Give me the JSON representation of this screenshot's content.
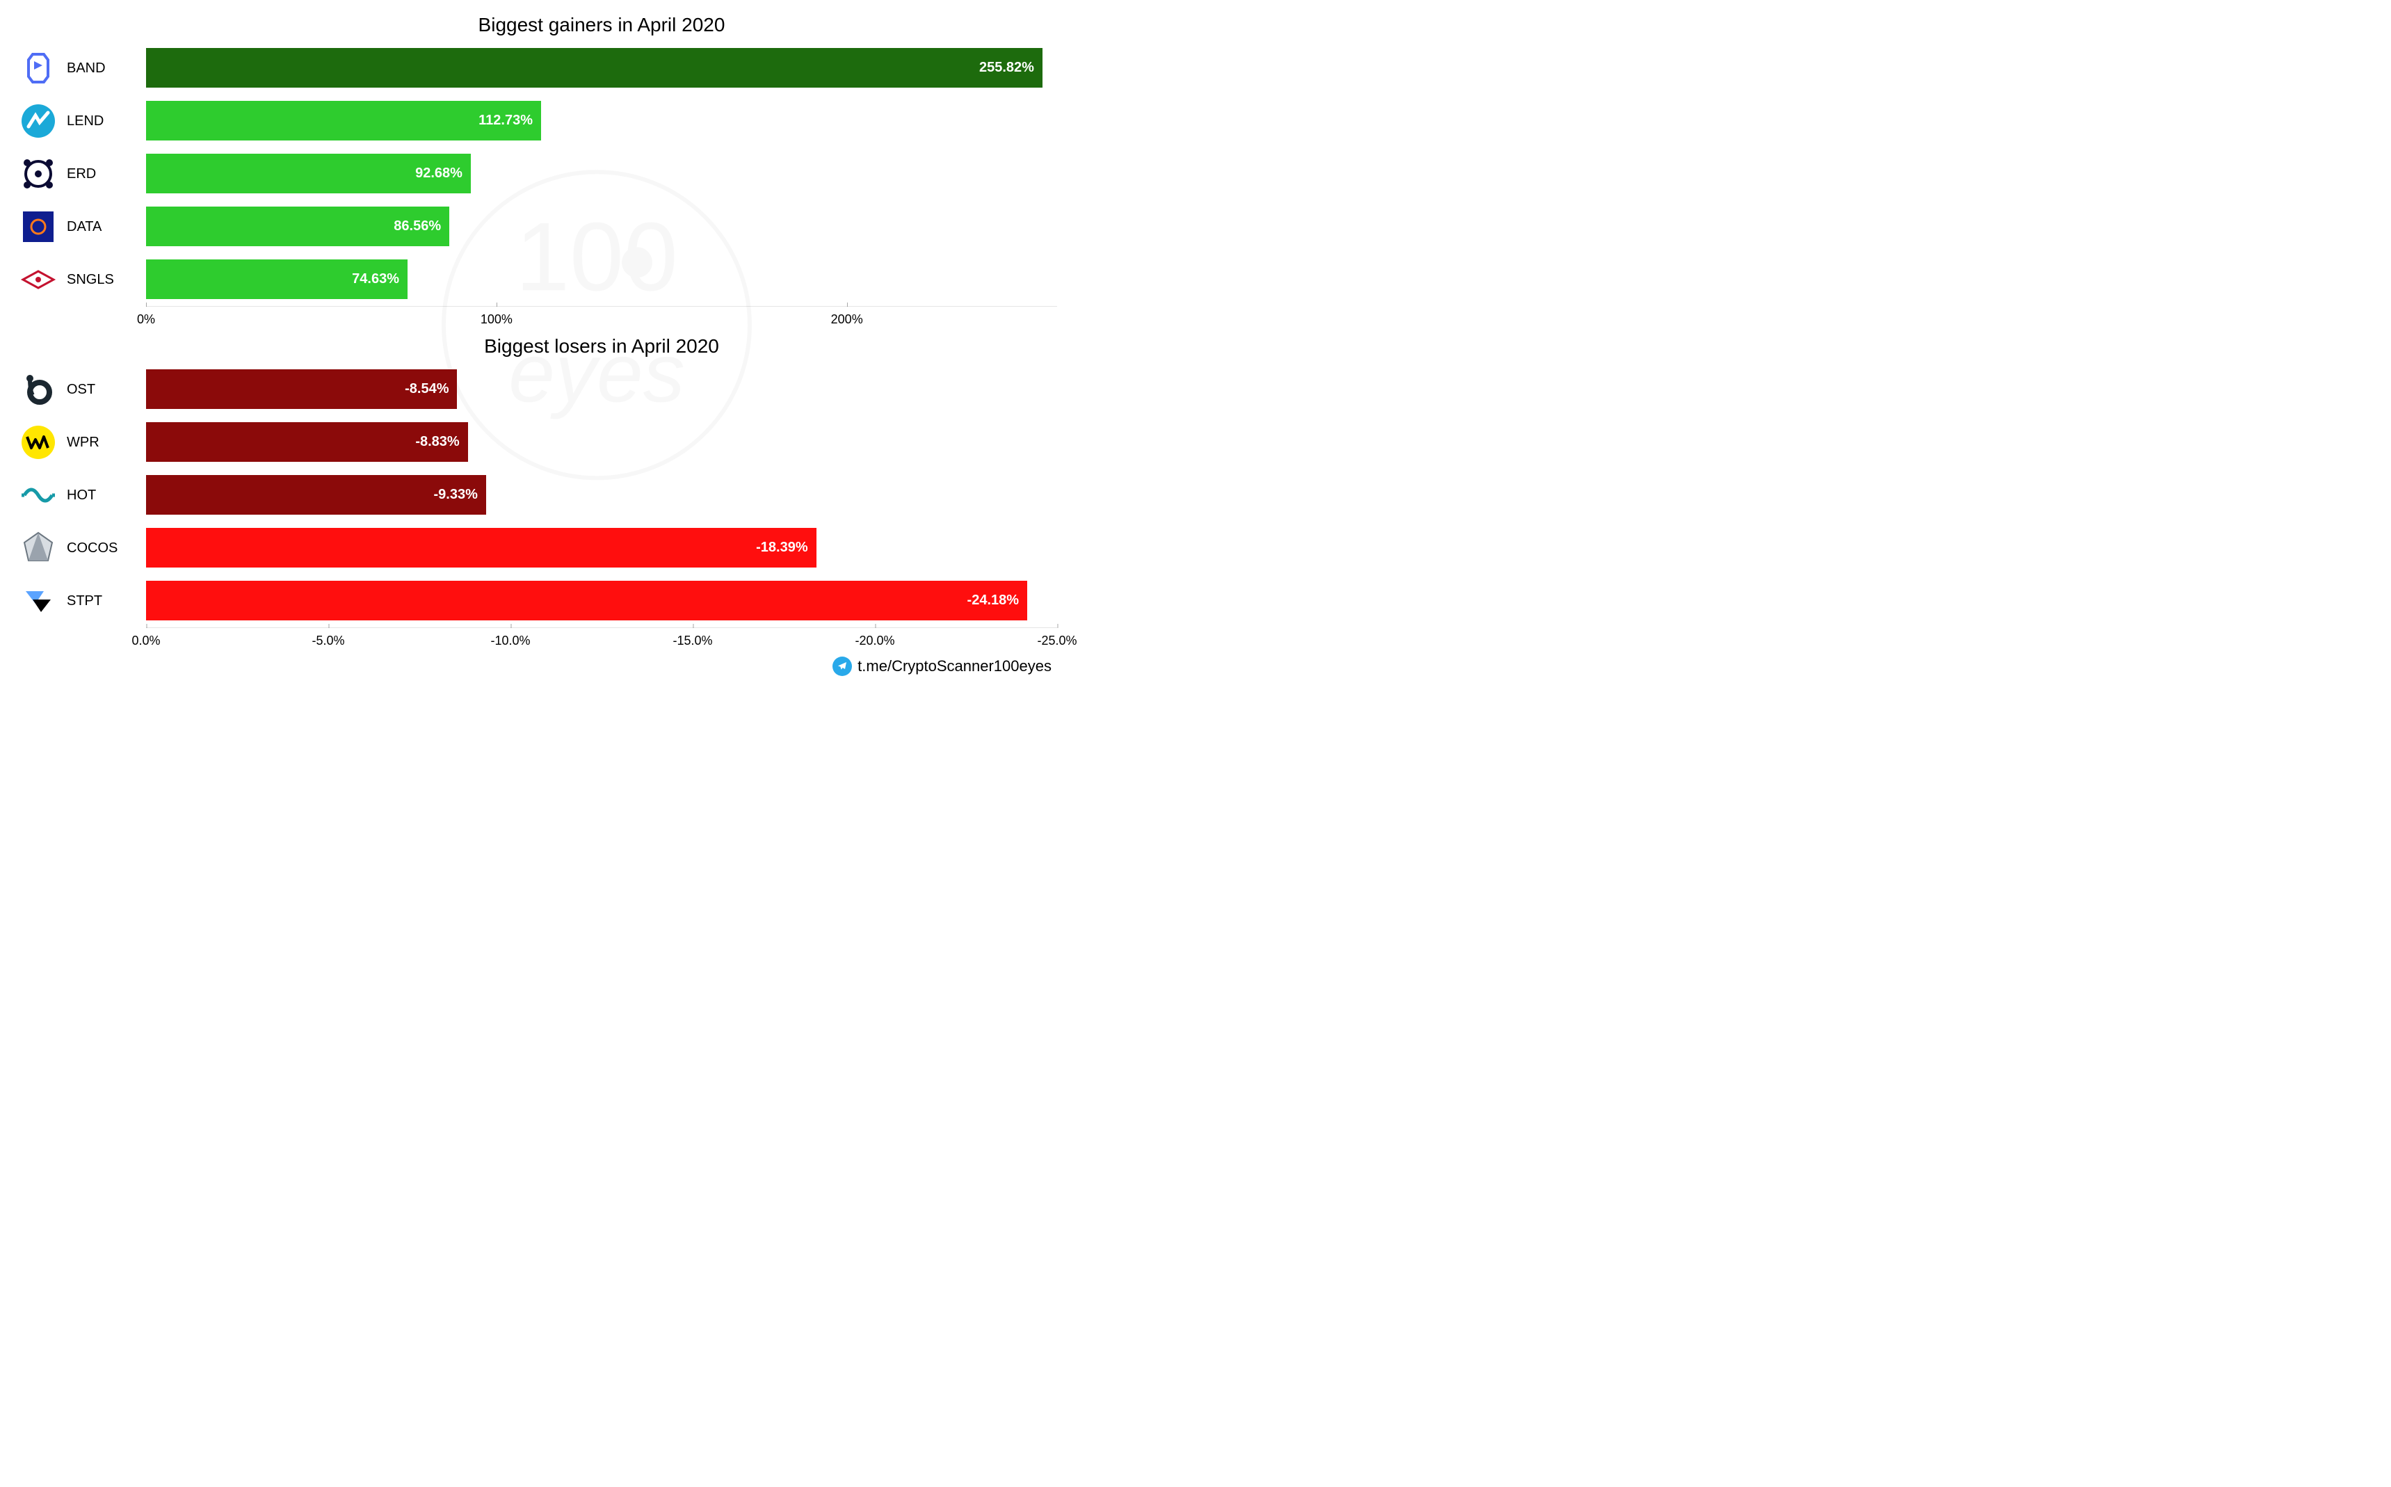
{
  "watermark": {
    "text": "100 eyes",
    "color": "#8a8a8a"
  },
  "footer": {
    "icon": "telegram-icon",
    "text": "t.me/CryptoScanner100eyes",
    "icon_bg": "#29a9ea"
  },
  "gainers_chart": {
    "type": "bar",
    "orientation": "horizontal",
    "title": "Biggest gainers in April 2020",
    "title_fontsize": 28,
    "xlim": [
      0,
      260
    ],
    "xticks": [
      0,
      100,
      200
    ],
    "xtick_labels": [
      "0%",
      "100%",
      "200%"
    ],
    "label_fontsize": 20,
    "value_fontsize": 20,
    "value_fontweight": 700,
    "background_color": "#ffffff",
    "grid_color": "rgba(0,0,0,0.1)",
    "bar_height_ratio": 0.76,
    "items": [
      {
        "symbol": "BAND",
        "value": 255.82,
        "value_label": "255.82%",
        "bar_color": "#1d6b0d",
        "icon": "band-icon"
      },
      {
        "symbol": "LEND",
        "value": 112.73,
        "value_label": "112.73%",
        "bar_color": "#2ecc2e",
        "icon": "lend-icon"
      },
      {
        "symbol": "ERD",
        "value": 92.68,
        "value_label": "92.68%",
        "bar_color": "#2ecc2e",
        "icon": "erd-icon"
      },
      {
        "symbol": "DATA",
        "value": 86.56,
        "value_label": "86.56%",
        "bar_color": "#2ecc2e",
        "icon": "data-icon"
      },
      {
        "symbol": "SNGLS",
        "value": 74.63,
        "value_label": "74.63%",
        "bar_color": "#2ecc2e",
        "icon": "sngls-icon"
      }
    ]
  },
  "losers_chart": {
    "type": "bar",
    "orientation": "horizontal",
    "title": "Biggest losers in April 2020",
    "title_fontsize": 28,
    "xlim": [
      0,
      -25
    ],
    "xticks": [
      0,
      -5,
      -10,
      -15,
      -20,
      -25
    ],
    "xtick_labels": [
      "0.0%",
      "-5.0%",
      "-10.0%",
      "-15.0%",
      "-20.0%",
      "-25.0%"
    ],
    "label_fontsize": 20,
    "value_fontsize": 20,
    "value_fontweight": 700,
    "background_color": "#ffffff",
    "grid_color": "rgba(0,0,0,0.1)",
    "bar_height_ratio": 0.76,
    "items": [
      {
        "symbol": "OST",
        "value": -8.54,
        "value_label": "-8.54%",
        "bar_color": "#8b0a0a",
        "icon": "ost-icon"
      },
      {
        "symbol": "WPR",
        "value": -8.83,
        "value_label": "-8.83%",
        "bar_color": "#8b0a0a",
        "icon": "wpr-icon"
      },
      {
        "symbol": "HOT",
        "value": -9.33,
        "value_label": "-9.33%",
        "bar_color": "#8b0a0a",
        "icon": "hot-icon"
      },
      {
        "symbol": "COCOS",
        "value": -18.39,
        "value_label": "-18.39%",
        "bar_color": "#ff0e0e",
        "icon": "cocos-icon"
      },
      {
        "symbol": "STPT",
        "value": -24.18,
        "value_label": "-24.18%",
        "bar_color": "#ff0e0e",
        "icon": "stpt-icon"
      }
    ]
  }
}
